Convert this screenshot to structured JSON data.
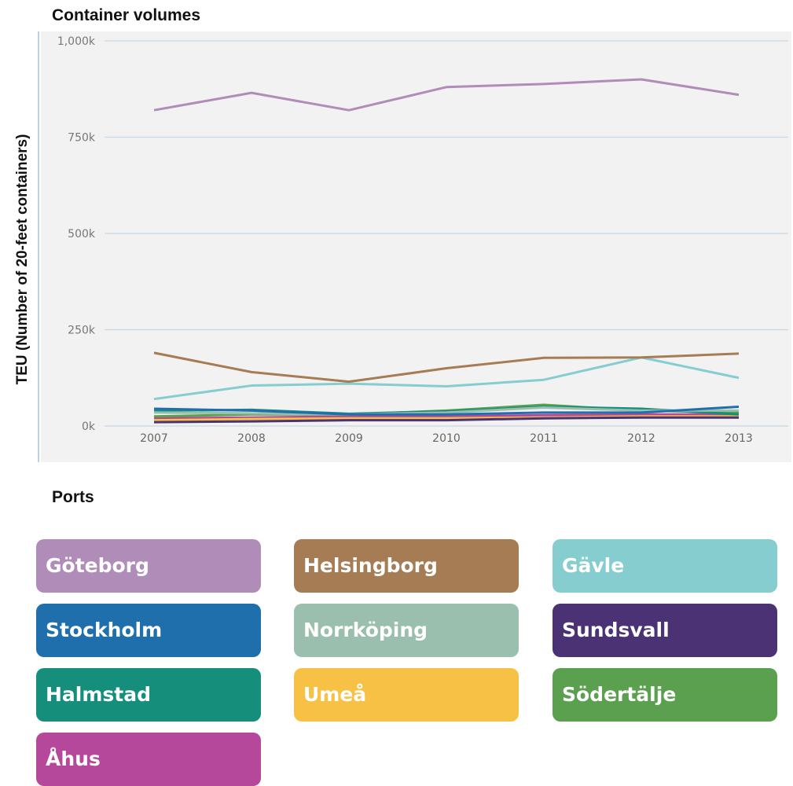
{
  "chart_data": {
    "type": "line",
    "title": "Container volumes",
    "xlabel": "",
    "ylabel": "TEU (Number of 20-feet containers)",
    "categories": [
      "2007",
      "2008",
      "2009",
      "2010",
      "2011",
      "2012",
      "2013"
    ],
    "ylim": [
      0,
      1000000
    ],
    "yticks": [
      0,
      250000,
      500000,
      750000,
      1000000
    ],
    "ytick_labels": [
      "0k",
      "250k",
      "500k",
      "750k",
      "1,000k"
    ],
    "grid": true,
    "series": [
      {
        "name": "Göteborg",
        "color": "#b08cb8",
        "values": [
          820000,
          865000,
          820000,
          880000,
          888000,
          900000,
          860000
        ]
      },
      {
        "name": "Helsingborg",
        "color": "#a67c55",
        "values": [
          190000,
          140000,
          115000,
          150000,
          177000,
          178000,
          188000
        ]
      },
      {
        "name": "Gävle",
        "color": "#86cdd0",
        "values": [
          70000,
          105000,
          110000,
          103000,
          120000,
          178000,
          125000
        ]
      },
      {
        "name": "Stockholm",
        "color": "#1f6fad",
        "values": [
          45000,
          40000,
          30000,
          30000,
          35000,
          35000,
          50000
        ]
      },
      {
        "name": "Norrköping",
        "color": "#9bbfae",
        "values": [
          35000,
          33000,
          30000,
          35000,
          48000,
          40000,
          40000
        ]
      },
      {
        "name": "Sundsvall",
        "color": "#4a3275",
        "values": [
          10000,
          12000,
          15000,
          15000,
          20000,
          22000,
          22000
        ]
      },
      {
        "name": "Halmstad",
        "color": "#158f7c",
        "values": [
          40000,
          42000,
          32000,
          38000,
          50000,
          45000,
          30000
        ]
      },
      {
        "name": "Umeå",
        "color": "#f6c144",
        "values": [
          15000,
          18000,
          20000,
          20000,
          22000,
          25000,
          25000
        ]
      },
      {
        "name": "Södertälje",
        "color": "#5aa04e",
        "values": [
          25000,
          30000,
          30000,
          40000,
          55000,
          40000,
          35000
        ]
      },
      {
        "name": "Åhus",
        "color": "#b5489b",
        "values": [
          20000,
          22000,
          25000,
          25000,
          28000,
          30000,
          30000
        ]
      }
    ]
  },
  "legend": {
    "title": "Ports",
    "items": [
      {
        "label": "Göteborg",
        "color": "#b08cb8"
      },
      {
        "label": "Helsingborg",
        "color": "#a67c55"
      },
      {
        "label": "Gävle",
        "color": "#86cdd0"
      },
      {
        "label": "Stockholm",
        "color": "#1f6fad"
      },
      {
        "label": "Norrköping",
        "color": "#9bbfae"
      },
      {
        "label": "Sundsvall",
        "color": "#4a3275"
      },
      {
        "label": "Halmstad",
        "color": "#158f7c"
      },
      {
        "label": "Umeå",
        "color": "#f6c144"
      },
      {
        "label": "Södertälje",
        "color": "#5aa04e"
      },
      {
        "label": "Åhus",
        "color": "#b5489b"
      }
    ]
  }
}
